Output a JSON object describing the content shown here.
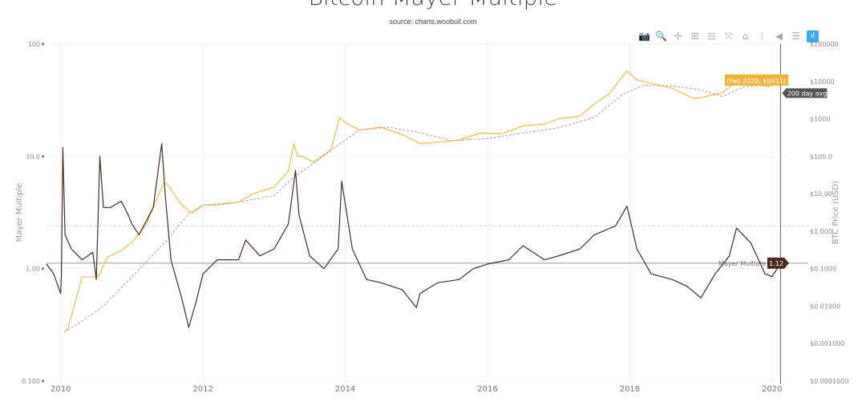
{
  "title": "Bitcoin Mayer Multiple",
  "subtitle": "source: charts.woobull.com",
  "modebar": [
    {
      "name": "camera-icon",
      "glyph": "📷"
    },
    {
      "name": "zoom-icon",
      "glyph": "🔍"
    },
    {
      "name": "pan-icon",
      "glyph": "✢"
    },
    {
      "name": "zoom-in-icon",
      "glyph": "⊞"
    },
    {
      "name": "zoom-out-icon",
      "glyph": "⊟"
    },
    {
      "name": "autoscale-icon",
      "glyph": "⤧"
    },
    {
      "name": "home-icon",
      "glyph": "⌂"
    },
    {
      "name": "spike-lines-icon",
      "glyph": "⋮"
    },
    {
      "name": "hover-closest-icon",
      "glyph": "◀"
    },
    {
      "name": "hover-compare-icon",
      "glyph": "☰"
    },
    {
      "name": "plotly-logo-icon",
      "glyph": "ıl"
    }
  ],
  "chart_data": {
    "type": "line",
    "title": "Bitcoin Mayer Multiple",
    "subtitle": "source: charts.woobull.com",
    "ylabel_left": "Mayer Multiple",
    "ylabel_right": "BTC Price (USD)",
    "x_ticks": [
      "2010",
      "2012",
      "2014",
      "2016",
      "2018",
      "2020"
    ],
    "x_range": [
      2009.8,
      2020.25
    ],
    "y_left_scale": "log",
    "y_left_range": [
      0.1,
      100
    ],
    "y_left_ticks": [
      "0.100",
      "1.00",
      "10.0",
      "100"
    ],
    "y_right_scale": "log",
    "y_right_range": [
      0.0001,
      100000
    ],
    "y_right_ticks": [
      "$0.0001000",
      "$0.001000",
      "$0.01000",
      "$0.1000",
      "$1.000",
      "$10.00",
      "$100.0",
      "$1000",
      "$10000",
      "$100000"
    ],
    "reference_lines": [
      {
        "name": "mayer-multiple-1",
        "value": 1.12,
        "label": "Mayer Multiple"
      },
      {
        "name": "mayer-multiple-2.4",
        "value": 2.4
      }
    ],
    "colors": {
      "price": "#f0b43c",
      "avg": "#999999",
      "mayer": "#4a2c20",
      "ref": "#bbbbbb"
    },
    "hover_labels": {
      "price": "(Feb 2020, $9911)",
      "avg": "200 day avg",
      "mayer_label": "Mayer Multiple",
      "mayer_value": "1.12"
    },
    "series": [
      {
        "name": "BTC Price",
        "axis": "right",
        "x": [
          2010.05,
          2010.1,
          2010.3,
          2010.52,
          2010.56,
          2010.65,
          2010.85,
          2011.0,
          2011.2,
          2011.45,
          2011.5,
          2011.7,
          2011.85,
          2012.0,
          2012.2,
          2012.5,
          2012.7,
          2013.0,
          2013.2,
          2013.28,
          2013.33,
          2013.4,
          2013.55,
          2013.8,
          2013.92,
          2014.0,
          2014.2,
          2014.5,
          2014.8,
          2015.05,
          2015.3,
          2015.6,
          2015.9,
          2016.2,
          2016.5,
          2016.8,
          2017.0,
          2017.3,
          2017.5,
          2017.7,
          2017.96,
          2018.1,
          2018.3,
          2018.6,
          2018.9,
          2019.0,
          2019.3,
          2019.5,
          2019.8,
          2019.95,
          2020.12
        ],
        "y": [
          0.002,
          0.0025,
          0.06,
          0.06,
          0.08,
          0.2,
          0.3,
          0.5,
          1.5,
          20,
          18,
          5,
          3,
          5,
          5,
          6,
          10,
          15,
          40,
          220,
          100,
          100,
          70,
          150,
          1100,
          800,
          500,
          600,
          380,
          220,
          240,
          270,
          420,
          400,
          650,
          730,
          1000,
          1200,
          2500,
          4500,
          19000,
          11000,
          9000,
          6500,
          3500,
          3700,
          5000,
          10000,
          8000,
          7200,
          9911
        ]
      },
      {
        "name": "200 day avg",
        "axis": "right",
        "x": [
          2010.05,
          2010.3,
          2010.6,
          2011.0,
          2011.5,
          2011.8,
          2012.0,
          2012.5,
          2013.0,
          2013.3,
          2013.6,
          2013.9,
          2014.2,
          2014.6,
          2015.0,
          2015.5,
          2016.0,
          2016.5,
          2017.0,
          2017.5,
          2017.9,
          2018.2,
          2018.6,
          2019.0,
          2019.3,
          2019.6,
          2020.12
        ],
        "y": [
          0.002,
          0.004,
          0.01,
          0.06,
          0.6,
          3,
          5,
          6,
          9,
          30,
          75,
          200,
          500,
          600,
          450,
          260,
          300,
          420,
          580,
          1100,
          4500,
          8000,
          7500,
          6000,
          4000,
          7200,
          8800
        ]
      },
      {
        "name": "Mayer Multiple",
        "axis": "left",
        "x": [
          2009.8,
          2009.9,
          2010.0,
          2010.01,
          2010.03,
          2010.06,
          2010.15,
          2010.3,
          2010.45,
          2010.5,
          2010.55,
          2010.6,
          2010.7,
          2010.85,
          2010.95,
          2011.0,
          2011.1,
          2011.3,
          2011.42,
          2011.47,
          2011.55,
          2011.7,
          2011.8,
          2011.9,
          2012.0,
          2012.2,
          2012.5,
          2012.6,
          2012.8,
          2013.0,
          2013.2,
          2013.3,
          2013.35,
          2013.5,
          2013.7,
          2013.9,
          2013.95,
          2014.1,
          2014.3,
          2014.5,
          2014.8,
          2015.0,
          2015.05,
          2015.3,
          2015.6,
          2015.8,
          2016.0,
          2016.3,
          2016.5,
          2016.8,
          2017.0,
          2017.3,
          2017.5,
          2017.8,
          2017.96,
          2018.1,
          2018.3,
          2018.6,
          2018.8,
          2019.0,
          2019.2,
          2019.4,
          2019.5,
          2019.7,
          2019.9,
          2020.0,
          2020.12
        ],
        "y": [
          1.1,
          0.9,
          0.6,
          0.9,
          12,
          2.0,
          1.5,
          1.2,
          1.4,
          0.8,
          10,
          3.5,
          3.5,
          4.0,
          3.0,
          2.5,
          2.0,
          3.5,
          13,
          4.5,
          1.2,
          0.55,
          0.3,
          0.5,
          0.9,
          1.2,
          1.2,
          1.8,
          1.3,
          1.5,
          2.5,
          7.5,
          3.0,
          1.3,
          1.0,
          1.5,
          6,
          1.5,
          0.8,
          0.75,
          0.65,
          0.45,
          0.6,
          0.75,
          0.8,
          1.0,
          1.1,
          1.2,
          1.6,
          1.2,
          1.3,
          1.5,
          2.0,
          2.4,
          3.6,
          1.5,
          0.9,
          0.8,
          0.7,
          0.55,
          0.9,
          1.3,
          2.3,
          1.7,
          0.9,
          0.85,
          1.12
        ]
      }
    ]
  }
}
